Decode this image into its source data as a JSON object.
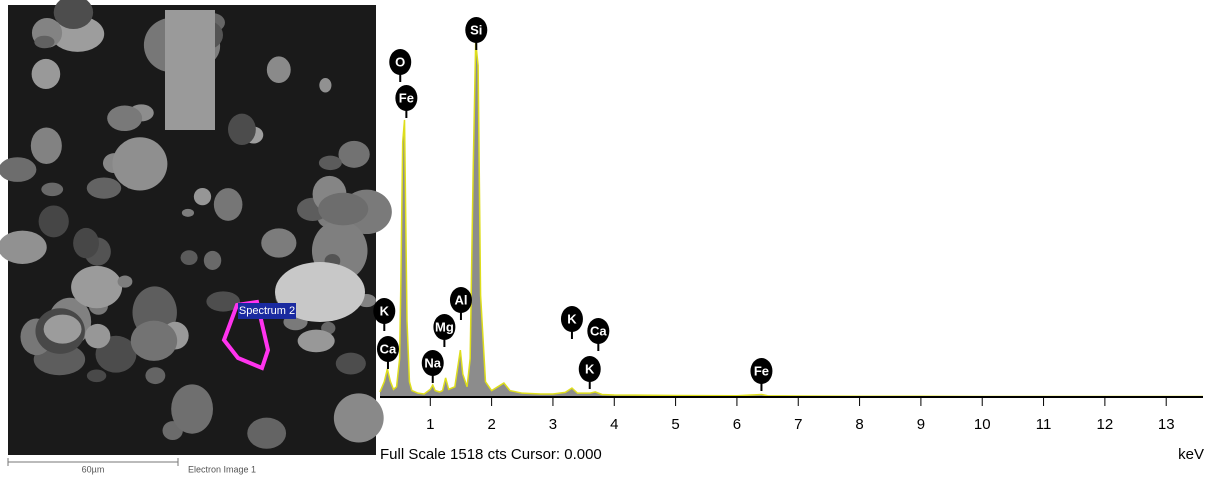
{
  "image": {
    "region_label": "Spectrum 2",
    "scale_bar": "60µm",
    "caption": "Electron Image 1"
  },
  "chart_data": {
    "type": "area",
    "x": [
      0.18,
      0.25,
      0.3,
      0.35,
      0.4,
      0.45,
      0.5,
      0.52,
      0.55,
      0.58,
      0.62,
      0.66,
      0.7,
      0.8,
      0.9,
      1.0,
      1.04,
      1.08,
      1.15,
      1.2,
      1.25,
      1.3,
      1.4,
      1.45,
      1.49,
      1.53,
      1.6,
      1.65,
      1.7,
      1.74,
      1.78,
      1.82,
      1.9,
      2.0,
      2.1,
      2.2,
      2.3,
      2.5,
      2.8,
      3.0,
      3.2,
      3.31,
      3.4,
      3.6,
      3.69,
      3.8,
      4.0,
      5.0,
      6.0,
      6.4,
      6.5,
      7.0,
      8.0,
      9.0,
      10.0,
      11.0,
      12.0,
      13.0,
      13.6
    ],
    "values": [
      20,
      60,
      110,
      60,
      30,
      40,
      150,
      450,
      1000,
      1087,
      300,
      60,
      25,
      15,
      12,
      30,
      47,
      25,
      20,
      25,
      75,
      30,
      40,
      120,
      184,
      90,
      40,
      150,
      900,
      1392,
      1300,
      400,
      60,
      25,
      40,
      55,
      25,
      15,
      12,
      12,
      18,
      35,
      15,
      15,
      20,
      10,
      8,
      6,
      5,
      10,
      5,
      4,
      3,
      3,
      2,
      2,
      2,
      2,
      2
    ],
    "fill": "#8c8c8c",
    "color": "#dede1c",
    "xlim": [
      0.18,
      13.6
    ],
    "ylim": [
      0,
      1518
    ],
    "xticks": [
      1,
      2,
      3,
      4,
      5,
      6,
      7,
      8,
      9,
      10,
      11,
      12,
      13
    ],
    "x_label": "keV",
    "status_text": "Full Scale 1518 cts Cursor: 0.000",
    "peak_labels": [
      {
        "label": "O",
        "x": 0.51
      },
      {
        "label": "Fe",
        "x": 0.61
      },
      {
        "label": "K",
        "x": 0.25
      },
      {
        "label": "Ca",
        "x": 0.31
      },
      {
        "label": "Na",
        "x": 1.04
      },
      {
        "label": "Mg",
        "x": 1.23
      },
      {
        "label": "Al",
        "x": 1.5
      },
      {
        "label": "Si",
        "x": 1.75
      },
      {
        "label": "K",
        "x": 3.31
      },
      {
        "label": "Ca",
        "x": 3.74
      },
      {
        "label": "K",
        "x": 3.6
      },
      {
        "label": "Fe",
        "x": 6.4
      }
    ]
  }
}
